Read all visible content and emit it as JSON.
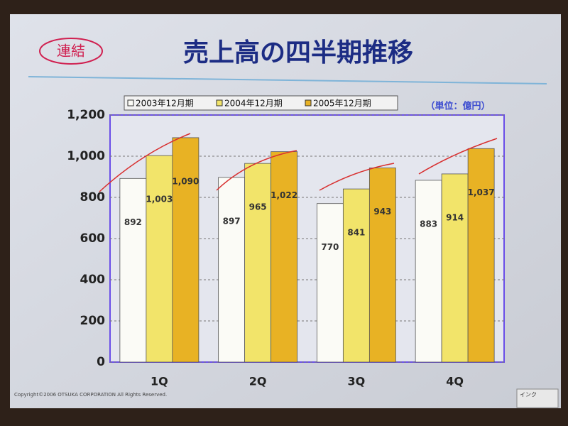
{
  "badge": "連結",
  "chart_data": {
    "type": "bar",
    "title": "売上高の四半期推移",
    "unit_note": "（単位：億円）",
    "categories": [
      "1Q",
      "2Q",
      "3Q",
      "4Q"
    ],
    "series": [
      {
        "name": "2003年12月期",
        "color": "#fbfbf6",
        "values": [
          892,
          897,
          770,
          883
        ]
      },
      {
        "name": "2004年12月期",
        "color": "#f2e46a",
        "values": [
          1003,
          965,
          841,
          914
        ],
        "value_labels": [
          "1,003",
          "965",
          "841",
          "914"
        ]
      },
      {
        "name": "2005年12月期",
        "color": "#e8b224",
        "values": [
          1090,
          1022,
          943,
          1037
        ],
        "value_labels": [
          "1,090",
          "1,022",
          "943",
          "1,037"
        ]
      }
    ],
    "ylim": [
      0,
      1200
    ],
    "yticks": [
      0,
      200,
      400,
      600,
      800,
      {
        "value": 1000,
        "label": "1,000"
      },
      {
        "value": 1200,
        "label": "1,200"
      }
    ],
    "grid": true,
    "legend": "top"
  },
  "footer": {
    "copyright": "Copyright©2006 OTSUKA CORPORATION All Rights Reserved.",
    "tool": "インク"
  }
}
